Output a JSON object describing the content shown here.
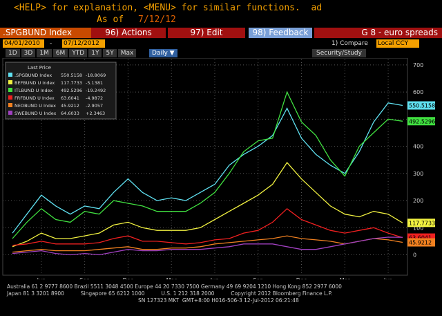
{
  "header": {
    "line1": "<HELP> for explanation, <MENU> for similar functions.  ad",
    "as_of_label": "As of",
    "as_of_date": "7/12/12"
  },
  "toolbar": {
    "security": ".SPGBUND Index",
    "actions": "96) Actions",
    "edit": "97) Edit",
    "feedback": "98) Feedback",
    "title": "G 8 - euro spreads",
    "start_date": "04/01/2010",
    "separator": "-",
    "end_date": "07/12/2012",
    "compare": "1) Compare",
    "currency": "Local CCY",
    "periods": [
      "1D",
      "3D",
      "1M",
      "6M",
      "YTD",
      "1Y",
      "5Y",
      "Max"
    ],
    "frequency": "Daily ▼",
    "study": "Security/Study"
  },
  "chart_data": {
    "type": "line",
    "legend_title": "Last Price",
    "x": [
      "2010-04",
      "2010-05",
      "2010-06",
      "2010-07",
      "2010-08",
      "2010-09",
      "2010-10",
      "2010-11",
      "2010-12",
      "2011-01",
      "2011-02",
      "2011-03",
      "2011-04",
      "2011-05",
      "2011-06",
      "2011-07",
      "2011-08",
      "2011-09",
      "2011-10",
      "2011-11",
      "2011-12",
      "2012-01",
      "2012-02",
      "2012-03",
      "2012-04",
      "2012-05",
      "2012-06",
      "2012-07"
    ],
    "xlim": [
      "2010-04",
      "2012-07"
    ],
    "xticks": [
      {
        "value": "2010-06",
        "label": "Jun"
      },
      {
        "value": "2010-09",
        "label": "Sep"
      },
      {
        "value": "2010-12",
        "label": "Dec"
      },
      {
        "value": "2011-03",
        "label": "Mar"
      },
      {
        "value": "2011-06",
        "label": "Jun"
      },
      {
        "value": "2011-09",
        "label": "Sep"
      },
      {
        "value": "2011-12",
        "label": "Dec"
      },
      {
        "value": "2012-03",
        "label": "Mar"
      },
      {
        "value": "2012-06",
        "label": "Jun"
      }
    ],
    "year_labels": [
      "2010",
      "2011",
      "2012"
    ],
    "ylim": [
      -70,
      720
    ],
    "yticks": [
      0,
      100,
      200,
      300,
      400,
      500,
      600,
      700
    ],
    "grid": true,
    "series": [
      {
        "name": ".SPGBUND Index",
        "color": "#5fe0f0",
        "change": "-18.8069",
        "values": [
          80,
          150,
          220,
          180,
          150,
          180,
          170,
          230,
          280,
          230,
          200,
          210,
          200,
          230,
          260,
          330,
          370,
          400,
          440,
          540,
          430,
          370,
          330,
          300,
          380,
          490,
          560,
          550.5158
        ]
      },
      {
        "name": "BEFBUND U Index",
        "color": "#f0f040",
        "change": "-5.1381",
        "values": [
          30,
          50,
          80,
          60,
          60,
          70,
          80,
          110,
          120,
          100,
          90,
          90,
          90,
          100,
          130,
          160,
          190,
          220,
          260,
          340,
          280,
          230,
          180,
          150,
          140,
          160,
          150,
          117.7733
        ]
      },
      {
        "name": "ITLBUND U Index",
        "color": "#40e040",
        "change": "-19.2492",
        "values": [
          60,
          120,
          170,
          130,
          120,
          160,
          150,
          200,
          190,
          180,
          160,
          160,
          160,
          190,
          230,
          300,
          380,
          420,
          430,
          600,
          490,
          440,
          350,
          290,
          400,
          450,
          500,
          492.5296
        ]
      },
      {
        "name": "FRFBUND U Index",
        "color": "#f02020",
        "change": "-4.9872",
        "values": [
          35,
          40,
          50,
          40,
          40,
          40,
          45,
          60,
          70,
          50,
          50,
          45,
          40,
          45,
          55,
          60,
          80,
          90,
          120,
          170,
          130,
          110,
          90,
          80,
          90,
          100,
          80,
          63.6041
        ]
      },
      {
        "name": "NEOBUND U Index",
        "color": "#f08020",
        "change": "-2.9057",
        "values": [
          10,
          15,
          20,
          15,
          15,
          15,
          20,
          25,
          30,
          20,
          20,
          25,
          25,
          30,
          40,
          45,
          50,
          55,
          60,
          70,
          60,
          55,
          50,
          40,
          50,
          60,
          55,
          45.9212
        ]
      },
      {
        "name": "SWEBUND U Index",
        "color": "#a040c0",
        "change": "+2.3463",
        "values": [
          5,
          10,
          15,
          5,
          0,
          5,
          0,
          10,
          20,
          15,
          15,
          20,
          20,
          20,
          25,
          30,
          40,
          40,
          40,
          30,
          20,
          20,
          30,
          40,
          50,
          60,
          65,
          64.6033
        ]
      }
    ]
  },
  "footer": {
    "line1": "Australia 61 2 9777 8600 Brazil 5511 3048 4500 Europe 44 20 7330 7500 Germany 49 69 9204 1210 Hong Kong 852 2977 6000",
    "line2": "Japan 81 3 3201 8900          Singapore 65 6212 1000          U.S. 1 212 318 2000          Copyright 2012 Bloomberg Finance L.P.",
    "line3": "SN 127323 MKT  GMT+8:00 H016-506-3 12-Jul-2012 06:21:48"
  }
}
